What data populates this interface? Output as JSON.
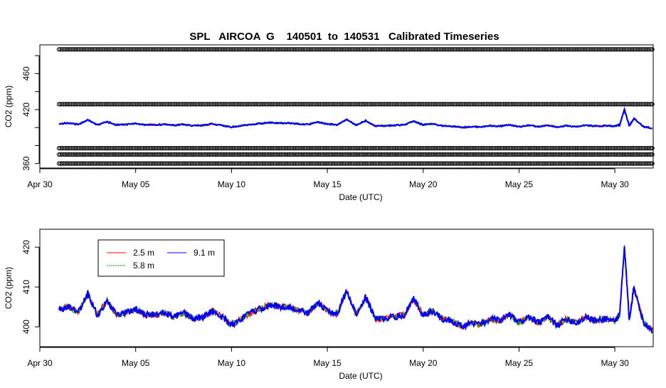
{
  "chart_data": [
    {
      "type": "scatter",
      "title": "SPL   AIRCOA  G    140501  to  140531   Calibrated Timeseries",
      "xlabel": "Date (UTC)",
      "ylabel": "CO2 (ppm)",
      "xlim": [
        "2014-04-30",
        "2014-06-01"
      ],
      "ylim": [
        355,
        492
      ],
      "x_ticks": [
        "Apr 30",
        "May 05",
        "May 10",
        "May 15",
        "May 20",
        "May 25",
        "May 30"
      ],
      "x_tick_dates": [
        "2014-04-30",
        "2014-05-05",
        "2014-05-10",
        "2014-05-15",
        "2014-05-20",
        "2014-05-25",
        "2014-05-30"
      ],
      "y_ticks": [
        360,
        380,
        400,
        420,
        440,
        460,
        480
      ],
      "y_tick_labels": [
        "360",
        "",
        "",
        "420",
        "",
        "460",
        ""
      ],
      "reference_levels": [
        {
          "value": 487,
          "color": "#000000"
        },
        {
          "value": 426,
          "color": "#000000"
        },
        {
          "value": 377,
          "color": "#000000"
        },
        {
          "value": 370,
          "color": "#000000"
        },
        {
          "value": 360,
          "color": "#000000"
        }
      ],
      "x_range_data": [
        "2014-05-01",
        "2014-05-31"
      ],
      "series": [
        {
          "color": "#ff0000"
        },
        {
          "color": "#00aa00"
        },
        {
          "color": "#0000ff"
        }
      ]
    },
    {
      "type": "line",
      "xlabel": "Date (UTC)",
      "ylabel": "CO2 (ppm)",
      "xlim": [
        "2014-04-30",
        "2014-06-01"
      ],
      "ylim": [
        395,
        424.5
      ],
      "x_ticks": [
        "Apr 30",
        "May 05",
        "May 10",
        "May 15",
        "May 20",
        "May 25",
        "May 30"
      ],
      "x_tick_dates": [
        "2014-04-30",
        "2014-05-05",
        "2014-05-10",
        "2014-05-15",
        "2014-05-20",
        "2014-05-25",
        "2014-05-30"
      ],
      "y_ticks": [
        400,
        410,
        420
      ],
      "legend_placement": "top-left",
      "series": [
        {
          "name": "2.5 m",
          "color": "#ff0000"
        },
        {
          "name": "5.8 m",
          "color": "#00aa00"
        },
        {
          "name": "9.1 m",
          "color": "#0000ff"
        }
      ],
      "x": [
        "2014-05-01",
        "2014-05-01T12:00",
        "2014-05-02",
        "2014-05-02T12:00",
        "2014-05-03",
        "2014-05-03T12:00",
        "2014-05-04",
        "2014-05-04T12:00",
        "2014-05-05",
        "2014-05-05T12:00",
        "2014-05-06",
        "2014-05-06T12:00",
        "2014-05-07",
        "2014-05-07T12:00",
        "2014-05-08",
        "2014-05-08T12:00",
        "2014-05-09",
        "2014-05-09T12:00",
        "2014-05-10",
        "2014-05-10T12:00",
        "2014-05-11",
        "2014-05-11T12:00",
        "2014-05-12",
        "2014-05-12T12:00",
        "2014-05-13",
        "2014-05-13T12:00",
        "2014-05-14",
        "2014-05-14T12:00",
        "2014-05-15",
        "2014-05-15T12:00",
        "2014-05-16",
        "2014-05-16T12:00",
        "2014-05-17",
        "2014-05-17T12:00",
        "2014-05-18",
        "2014-05-18T12:00",
        "2014-05-19",
        "2014-05-19T12:00",
        "2014-05-20",
        "2014-05-20T12:00",
        "2014-05-21",
        "2014-05-21T12:00",
        "2014-05-22",
        "2014-05-22T12:00",
        "2014-05-23",
        "2014-05-23T12:00",
        "2014-05-24",
        "2014-05-24T12:00",
        "2014-05-25",
        "2014-05-25T12:00",
        "2014-05-26",
        "2014-05-26T12:00",
        "2014-05-27",
        "2014-05-27T12:00",
        "2014-05-28",
        "2014-05-28T12:00",
        "2014-05-29",
        "2014-05-29T12:00",
        "2014-05-30",
        "2014-05-30T06:00",
        "2014-05-30T12:00",
        "2014-05-30T18:00",
        "2014-05-31",
        "2014-05-31T12:00",
        "2014-06-01"
      ],
      "values": [
        404.2,
        405.0,
        403.5,
        408.5,
        403.0,
        406.5,
        403.0,
        403.5,
        404.5,
        403.0,
        403.0,
        403.5,
        402.5,
        403.5,
        402.0,
        402.5,
        404.0,
        402.5,
        400.5,
        402.0,
        403.5,
        404.5,
        405.5,
        405.0,
        405.0,
        404.0,
        403.5,
        406.0,
        404.0,
        403.0,
        409.0,
        403.0,
        407.5,
        402.0,
        402.0,
        402.5,
        403.0,
        407.0,
        403.0,
        404.0,
        402.0,
        401.5,
        400.0,
        401.0,
        400.5,
        402.0,
        401.5,
        403.0,
        401.0,
        402.5,
        401.0,
        402.5,
        400.5,
        402.0,
        401.0,
        402.5,
        401.5,
        402.0,
        401.5,
        403.0,
        420.0,
        402.0,
        410.0,
        401.0,
        399.0
      ]
    }
  ]
}
